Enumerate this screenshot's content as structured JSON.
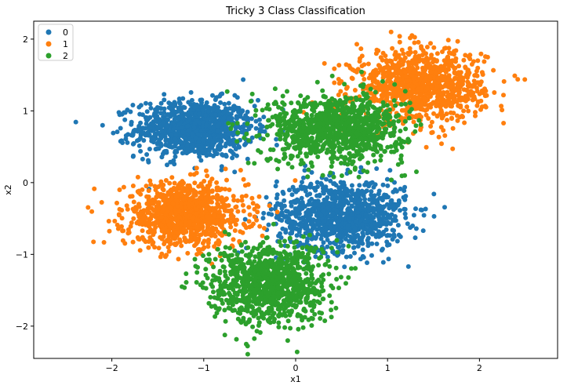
{
  "chart_data": {
    "type": "scatter",
    "title": "Tricky 3 Class Classification",
    "xlabel": "x1",
    "ylabel": "x2",
    "xlim": [
      -2.85,
      2.85
    ],
    "ylim": [
      -2.45,
      2.25
    ],
    "xticks": [
      -2,
      -1,
      0,
      1,
      2
    ],
    "yticks": [
      -2,
      -1,
      0,
      1,
      2
    ],
    "grid": false,
    "legend_position": "top-left",
    "series": [
      {
        "name": "0",
        "color": "#1f77b4",
        "clusters": [
          {
            "center_x": -1.1,
            "center_y": 0.75,
            "spread_x": 0.32,
            "spread_y": 0.2,
            "points": 1000
          },
          {
            "center_x": 0.5,
            "center_y": -0.45,
            "spread_x": 0.35,
            "spread_y": 0.25,
            "points": 1000
          }
        ]
      },
      {
        "name": "1",
        "color": "#ff7f0e",
        "clusters": [
          {
            "center_x": -1.2,
            "center_y": -0.45,
            "spread_x": 0.33,
            "spread_y": 0.22,
            "points": 1000
          },
          {
            "center_x": 1.35,
            "center_y": 1.35,
            "spread_x": 0.35,
            "spread_y": 0.25,
            "points": 1000
          }
        ]
      },
      {
        "name": "2",
        "color": "#2ca02c",
        "clusters": [
          {
            "center_x": 0.45,
            "center_y": 0.75,
            "spread_x": 0.37,
            "spread_y": 0.24,
            "points": 1000
          },
          {
            "center_x": -0.3,
            "center_y": -1.4,
            "spread_x": 0.32,
            "spread_y": 0.28,
            "points": 1000
          }
        ]
      }
    ]
  }
}
